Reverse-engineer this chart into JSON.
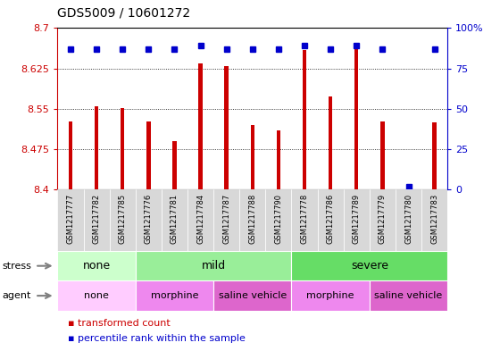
{
  "title": "GDS5009 / 10601272",
  "samples": [
    "GSM1217777",
    "GSM1217782",
    "GSM1217785",
    "GSM1217776",
    "GSM1217781",
    "GSM1217784",
    "GSM1217787",
    "GSM1217788",
    "GSM1217790",
    "GSM1217778",
    "GSM1217786",
    "GSM1217789",
    "GSM1217779",
    "GSM1217780",
    "GSM1217783"
  ],
  "transformed_count": [
    8.527,
    8.555,
    8.551,
    8.527,
    8.49,
    8.635,
    8.63,
    8.52,
    8.51,
    8.66,
    8.573,
    8.665,
    8.527,
    8.402,
    8.525
  ],
  "percentile_rank": [
    87,
    87,
    87,
    87,
    87,
    89,
    87,
    87,
    87,
    89,
    87,
    89,
    87,
    2,
    87
  ],
  "y_min": 8.4,
  "y_max": 8.7,
  "y_ticks": [
    8.4,
    8.475,
    8.55,
    8.625,
    8.7
  ],
  "right_y_ticks": [
    0,
    25,
    50,
    75,
    100
  ],
  "bar_color": "#cc0000",
  "percentile_color": "#0000cc",
  "stress_groups": [
    {
      "label": "none",
      "start": 0,
      "end": 3
    },
    {
      "label": "mild",
      "start": 3,
      "end": 9
    },
    {
      "label": "severe",
      "start": 9,
      "end": 15
    }
  ],
  "stress_colors": [
    "#ccffcc",
    "#99ee99",
    "#66dd66"
  ],
  "agent_groups": [
    {
      "label": "none",
      "start": 0,
      "end": 3
    },
    {
      "label": "morphine",
      "start": 3,
      "end": 6
    },
    {
      "label": "saline vehicle",
      "start": 6,
      "end": 9
    },
    {
      "label": "morphine",
      "start": 9,
      "end": 12
    },
    {
      "label": "saline vehicle",
      "start": 12,
      "end": 15
    }
  ],
  "agent_colors": [
    "#ffccff",
    "#ee88ee",
    "#dd66cc",
    "#ee88ee",
    "#dd66cc"
  ],
  "legend_items": [
    {
      "label": "transformed count",
      "color": "#cc0000"
    },
    {
      "label": "percentile rank within the sample",
      "color": "#0000cc"
    }
  ],
  "fig_width": 5.6,
  "fig_height": 3.93,
  "dpi": 100
}
